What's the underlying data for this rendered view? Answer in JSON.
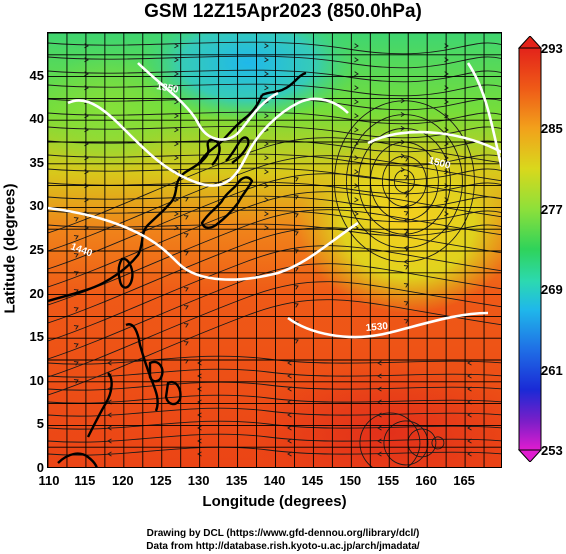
{
  "title": "GSM 12Z15Apr2023 (850.0hPa)",
  "axes": {
    "xlabel": "Longitude (degrees)",
    "ylabel": "Latitude (degrees)",
    "xlim": [
      110,
      170
    ],
    "ylim": [
      0,
      50
    ],
    "xticks": [
      "110",
      "115",
      "120",
      "125",
      "130",
      "135",
      "140",
      "145",
      "150",
      "155",
      "160",
      "165"
    ],
    "yticks": [
      "0",
      "5",
      "10",
      "15",
      "20",
      "25",
      "30",
      "35",
      "40",
      "45"
    ]
  },
  "colorbar": {
    "min": 253,
    "max": 293,
    "labels": [
      "293",
      "285",
      "277",
      "269",
      "261",
      "253"
    ]
  },
  "contours": {
    "color": "#ffffff",
    "labels": [
      "1350",
      "1440",
      "1530",
      "1500"
    ]
  },
  "credits": {
    "line1": "Drawing by DCL (https://www.gfd-dennou.org/library/dcl/)",
    "line2": "Data from http://database.rish.kyoto-u.ac.jp/arch/jmadata/"
  }
}
